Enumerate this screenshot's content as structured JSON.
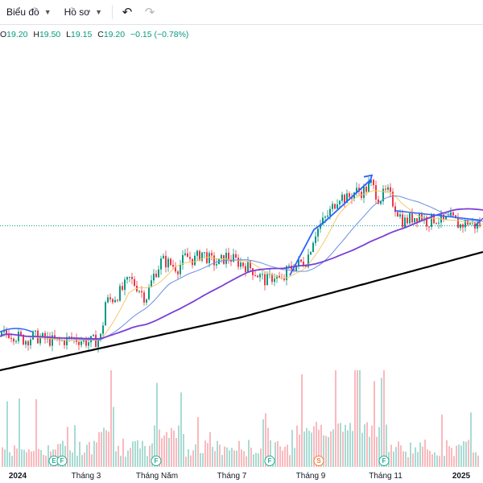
{
  "toolbar": {
    "chart_label": "Biểu đồ",
    "profile_label": "Hồ sơ",
    "undo_icon": "undo-icon",
    "redo_icon": "redo-icon"
  },
  "ohlc": {
    "o_label": "O",
    "o_value": "19.20",
    "h_label": "H",
    "h_value": "19.50",
    "l_label": "L",
    "l_value": "19.15",
    "c_label": "C",
    "c_value": "19.20",
    "change": "−0.15 (−0.78%)"
  },
  "colors": {
    "up": "#089981",
    "down": "#f23645",
    "ma_long": "#000000",
    "ma_mid": "#7b3fd6",
    "ma_short": "#6b8fe0",
    "ma_fast": "#f5c96b",
    "trend": "#2962ff"
  },
  "x_axis": {
    "labels": [
      {
        "text": "2024",
        "bold": true
      },
      {
        "text": "Tháng 3",
        "bold": false
      },
      {
        "text": "Tháng Năm",
        "bold": false
      },
      {
        "text": "Tháng 7",
        "bold": false
      },
      {
        "text": "Tháng 9",
        "bold": false
      },
      {
        "text": "Tháng 11",
        "bold": false
      },
      {
        "text": "2025",
        "bold": true
      }
    ]
  },
  "events": [
    {
      "letter": "E",
      "type": "earnings"
    },
    {
      "letter": "F",
      "type": "earnings"
    },
    {
      "letter": "F",
      "type": "earnings"
    },
    {
      "letter": "F",
      "type": "earnings"
    },
    {
      "letter": "S",
      "type": "split"
    },
    {
      "letter": "F",
      "type": "earnings"
    }
  ],
  "chart_data": {
    "type": "candlestick",
    "price_path": [
      [
        0,
        17.6
      ],
      [
        10,
        17.7
      ],
      [
        20,
        17.6
      ],
      [
        30,
        17.5
      ],
      [
        40,
        17.6
      ],
      [
        50,
        17.55
      ],
      [
        60,
        17.5
      ],
      [
        70,
        17.45
      ],
      [
        80,
        17.5
      ],
      [
        90,
        17.55
      ],
      [
        100,
        17.5
      ],
      [
        110,
        17.45
      ],
      [
        120,
        17.5
      ],
      [
        125,
        17.6
      ],
      [
        130,
        18.5
      ],
      [
        140,
        18.6
      ],
      [
        150,
        18.8
      ],
      [
        160,
        19.1
      ],
      [
        170,
        18.9
      ],
      [
        180,
        18.6
      ],
      [
        190,
        19.2
      ],
      [
        200,
        19.6
      ],
      [
        210,
        19.5
      ],
      [
        220,
        19.4
      ],
      [
        230,
        19.7
      ],
      [
        240,
        19.6
      ],
      [
        250,
        19.8
      ],
      [
        260,
        19.6
      ],
      [
        270,
        19.5
      ],
      [
        280,
        19.7
      ],
      [
        290,
        19.6
      ],
      [
        300,
        19.5
      ],
      [
        310,
        19.4
      ],
      [
        320,
        19.2
      ],
      [
        330,
        19.05
      ],
      [
        340,
        19.2
      ],
      [
        350,
        19.0
      ],
      [
        355,
        19.3
      ],
      [
        360,
        19.4
      ],
      [
        370,
        19.5
      ],
      [
        380,
        19.6
      ],
      [
        390,
        20.3
      ],
      [
        400,
        20.6
      ],
      [
        410,
        20.9
      ],
      [
        420,
        21.3
      ],
      [
        430,
        21.2
      ],
      [
        440,
        21.4
      ],
      [
        450,
        21.4
      ],
      [
        460,
        21.6
      ],
      [
        470,
        21.2
      ],
      [
        480,
        21.4
      ],
      [
        490,
        21.0
      ],
      [
        500,
        20.6
      ],
      [
        510,
        20.7
      ],
      [
        520,
        20.8
      ],
      [
        530,
        20.6
      ],
      [
        540,
        20.7
      ],
      [
        550,
        20.6
      ],
      [
        560,
        20.7
      ],
      [
        570,
        20.5
      ],
      [
        580,
        20.6
      ],
      [
        590,
        20.5
      ],
      [
        600,
        20.6
      ]
    ]
  }
}
